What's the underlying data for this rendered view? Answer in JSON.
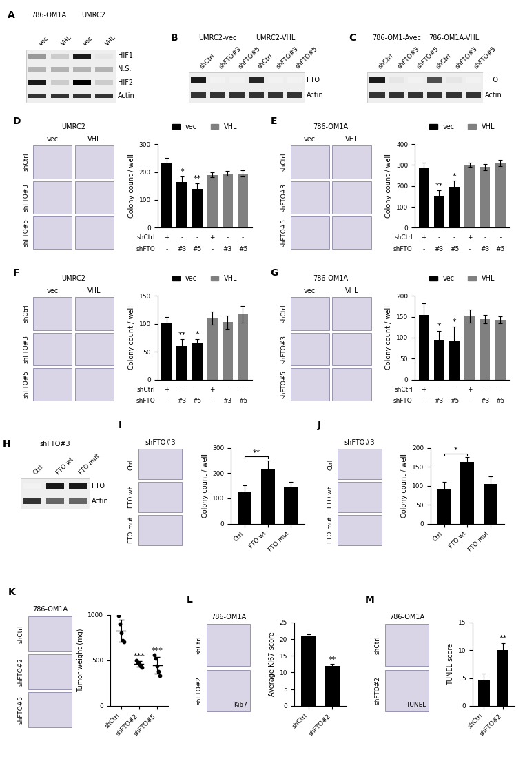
{
  "blots": [
    {
      "panel": "A",
      "groups": [
        "786-OM1A",
        "UMRC2"
      ],
      "lanes": [
        "vec",
        "VHL",
        "vec",
        "VHL"
      ],
      "bands": [
        {
          "label": "HIF1",
          "intensity": [
            0.4,
            0.2,
            0.9,
            0.1
          ]
        },
        {
          "label": "N.S.",
          "intensity": [
            0.3,
            0.3,
            0.3,
            0.3
          ]
        },
        {
          "label": "HIF2",
          "intensity": [
            0.9,
            0.2,
            1.0,
            0.2
          ]
        },
        {
          "label": "Actin",
          "intensity": [
            0.8,
            0.8,
            0.8,
            0.8
          ]
        }
      ]
    },
    {
      "panel": "B",
      "groups": [
        "UMRC2-vec",
        "UMRC2-VHL"
      ],
      "lanes": [
        "shCtrl",
        "shFTO#3",
        "shFTO#5",
        "shCtrl",
        "shFTO#3",
        "shFTO#5"
      ],
      "bands": [
        {
          "label": "FTO",
          "intensity": [
            0.9,
            0.05,
            0.05,
            0.85,
            0.05,
            0.05
          ]
        },
        {
          "label": "Actin",
          "intensity": [
            0.8,
            0.8,
            0.8,
            0.8,
            0.8,
            0.8
          ]
        }
      ]
    },
    {
      "panel": "C",
      "groups": [
        "786-OM1-Avec",
        "786-OM1A-VHL"
      ],
      "lanes": [
        "shCtrl",
        "shFTO#3",
        "shFTO#5",
        "shCtrl",
        "shFTO#3",
        "shFTO#5"
      ],
      "bands": [
        {
          "label": "FTO",
          "intensity": [
            0.9,
            0.1,
            0.05,
            0.7,
            0.1,
            0.05
          ]
        },
        {
          "label": "Actin",
          "intensity": [
            0.8,
            0.8,
            0.8,
            0.8,
            0.8,
            0.8
          ]
        }
      ]
    },
    {
      "panel": "H",
      "groups": [
        "shFTO#3"
      ],
      "lanes": [
        "Ctrl",
        "FTO wt",
        "FTO mut"
      ],
      "bands": [
        {
          "label": "FTO",
          "intensity": [
            0.05,
            0.9,
            0.9
          ]
        },
        {
          "label": "Actin",
          "intensity": [
            0.8,
            0.6,
            0.6
          ]
        }
      ]
    }
  ],
  "images": [
    {
      "title": "UMRC2",
      "columns": [
        "vec",
        "VHL"
      ],
      "rows": [
        "shCtrl",
        "shFTO#3",
        "shFTO#5"
      ]
    },
    {
      "title": "786-OM1A",
      "columns": [
        "vec",
        "VHL"
      ],
      "rows": [
        "shCtrl",
        "shFTO#3",
        "shFTO#5"
      ]
    },
    {
      "title": "UMRC2",
      "columns": [
        "vec",
        "VHL"
      ],
      "rows": [
        "shCtrl",
        "shFTO#3",
        "shFTO#5"
      ]
    },
    {
      "title": "786-OM1A",
      "columns": [
        "vec",
        "VHL"
      ],
      "rows": [
        "shCtrl",
        "shFTO#3",
        "shFTO#5"
      ]
    },
    {
      "title": "shFTO#3",
      "rows": [
        "Ctrl",
        "FTO wt",
        "FTO mut"
      ]
    },
    {
      "title": "shFTO#3",
      "rows": [
        "Ctrl",
        "FTO wt",
        "FTO mut"
      ]
    },
    {
      "title": "786-OM1A",
      "rows": [
        "shCtrl",
        "shFTO#2",
        "shFTO#5"
      ]
    },
    {
      "title": "786-OM1A",
      "rows": [
        "shCtrl",
        "shFTO#2"
      ],
      "stain": "Ki67"
    },
    {
      "title": "786-OM1A",
      "rows": [
        "shCtrl",
        "shFTO#2"
      ],
      "stain": "TUNEL"
    }
  ],
  "chart_data": [
    {
      "panel": "D",
      "type": "bar",
      "y_label": "Colony count / well",
      "x_table": [
        {
          "name": "shCtrl",
          "labels": [
            "+",
            "-",
            "-",
            "+",
            "-",
            "-"
          ]
        },
        {
          "name": "shFTO",
          "labels": [
            "-",
            "#3",
            "#5",
            "-",
            "#3",
            "#5"
          ]
        }
      ],
      "series": [
        {
          "name": "vec",
          "color": "#000000",
          "values": [
            230,
            165,
            140,
            null,
            null,
            null
          ],
          "errors": [
            20,
            20,
            20,
            null,
            null,
            null
          ]
        },
        {
          "name": "VHL",
          "color": "#808080",
          "values": [
            null,
            null,
            null,
            190,
            195,
            195
          ],
          "errors": [
            null,
            null,
            null,
            8,
            8,
            12
          ]
        }
      ],
      "significance": [
        null,
        "*",
        "**",
        null,
        null,
        null
      ],
      "ylim": [
        0,
        300
      ],
      "yticks": [
        0,
        100,
        200,
        300
      ],
      "legend": "upper center",
      "tick_labels": "y"
    },
    {
      "panel": "E",
      "type": "bar",
      "y_label": "Colony count / well",
      "x_table": [
        {
          "name": "shCtrl",
          "labels": [
            "+",
            "-",
            "-",
            "+",
            "-",
            "-"
          ]
        },
        {
          "name": "shFTO",
          "labels": [
            "-",
            "#3",
            "#5",
            "-",
            "#3",
            "#5"
          ]
        }
      ],
      "series": [
        {
          "name": "vec",
          "color": "#000000",
          "values": [
            285,
            150,
            195,
            null,
            null,
            null
          ],
          "errors": [
            25,
            30,
            30,
            null,
            null,
            null
          ]
        },
        {
          "name": "VHL",
          "color": "#808080",
          "values": [
            null,
            null,
            null,
            300,
            290,
            310
          ],
          "errors": [
            null,
            null,
            null,
            10,
            15,
            15
          ]
        }
      ],
      "significance": [
        null,
        "**",
        "*",
        null,
        null,
        null
      ],
      "ylim": [
        0,
        400
      ],
      "yticks": [
        0,
        100,
        200,
        300,
        400
      ],
      "legend": "upper center",
      "tick_labels": "y"
    },
    {
      "panel": "F",
      "type": "bar",
      "y_label": "Colony count / well",
      "x_table": [
        {
          "name": "shCtrl",
          "labels": [
            "+",
            "-",
            "-",
            "+",
            "-",
            "-"
          ]
        },
        {
          "name": "shFTO",
          "labels": [
            "-",
            "#3",
            "#5",
            "-",
            "#3",
            "#5"
          ]
        }
      ],
      "series": [
        {
          "name": "vec",
          "color": "#000000",
          "values": [
            102,
            60,
            65,
            null,
            null,
            null
          ],
          "errors": [
            10,
            12,
            8,
            null,
            null,
            null
          ]
        },
        {
          "name": "VHL",
          "color": "#808080",
          "values": [
            null,
            null,
            null,
            110,
            103,
            117
          ],
          "errors": [
            null,
            null,
            null,
            12,
            12,
            15
          ]
        }
      ],
      "significance": [
        null,
        "**",
        "*",
        null,
        null,
        null
      ],
      "ylim": [
        0,
        150
      ],
      "yticks": [
        0,
        50,
        100,
        150
      ],
      "legend": "upper center",
      "tick_labels": "y"
    },
    {
      "panel": "G",
      "type": "bar",
      "y_label": "Colony count / well",
      "x_table": [
        {
          "name": "shCtrl",
          "labels": [
            "+",
            "-",
            "-",
            "+",
            "-",
            "-"
          ]
        },
        {
          "name": "shFTO",
          "labels": [
            "-",
            "#3",
            "#5",
            "-",
            "#3",
            "#5"
          ]
        }
      ],
      "series": [
        {
          "name": "vec",
          "color": "#000000",
          "values": [
            155,
            95,
            92,
            null,
            null,
            null
          ],
          "errors": [
            28,
            22,
            35,
            null,
            null,
            null
          ]
        },
        {
          "name": "VHL",
          "color": "#808080",
          "values": [
            null,
            null,
            null,
            152,
            145,
            143
          ],
          "errors": [
            null,
            null,
            null,
            15,
            10,
            8
          ]
        }
      ],
      "significance": [
        null,
        "*",
        "*",
        null,
        null,
        null
      ],
      "ylim": [
        0,
        200
      ],
      "yticks": [
        0,
        50,
        100,
        150,
        200
      ],
      "legend": "upper center",
      "tick_labels": "y"
    },
    {
      "panel": "I",
      "type": "bar",
      "y_label": "Colony count / well",
      "categories": [
        "Ctrl",
        "FTO wt",
        "FTO mut"
      ],
      "values": [
        125,
        218,
        143
      ],
      "errors": [
        28,
        32,
        22
      ],
      "color": "#000000",
      "brackets": [
        {
          "from": 0,
          "to": 1,
          "text": "**"
        }
      ],
      "ylim": [
        0,
        300
      ],
      "yticks": [
        0,
        100,
        200,
        300
      ]
    },
    {
      "panel": "J",
      "type": "bar",
      "y_label": "Colony count / well",
      "categories": [
        "Ctrl",
        "FTO wt",
        "FTO mut"
      ],
      "values": [
        90,
        163,
        105
      ],
      "errors": [
        20,
        12,
        20
      ],
      "color": "#000000",
      "brackets": [
        {
          "from": 0,
          "to": 1,
          "text": "*"
        }
      ],
      "ylim": [
        0,
        200
      ],
      "yticks": [
        0,
        50,
        100,
        150,
        200
      ]
    },
    {
      "panel": "K",
      "type": "scatter",
      "y_label": "Tumor weight (mg)",
      "categories": [
        "shCtrl",
        "shFTO#2",
        "shFTO#5"
      ],
      "points": [
        [
          990,
          900,
          800,
          720,
          700
        ],
        [
          500,
          480,
          460,
          440,
          420
        ],
        [
          560,
          520,
          440,
          380,
          330
        ]
      ],
      "mean": [
        822,
        460,
        446
      ],
      "sd": [
        120,
        30,
        90
      ],
      "color": "#000000",
      "significance": [
        null,
        "***",
        "***"
      ],
      "ylim": [
        0,
        1000
      ],
      "yticks": [
        0,
        500,
        1000
      ]
    },
    {
      "panel": "L",
      "type": "bar",
      "y_label": "Average Ki67 score",
      "categories": [
        "shCtrl",
        "shFTO#2"
      ],
      "values": [
        21,
        12
      ],
      "errors": [
        0.5,
        0.5
      ],
      "color": "#000000",
      "significance": [
        null,
        "**"
      ],
      "ylim": [
        0,
        25
      ],
      "yticks": [
        0,
        5,
        10,
        15,
        20,
        25
      ]
    },
    {
      "panel": "M",
      "type": "bar",
      "y_label": "TUNEL score",
      "categories": [
        "shCtrl",
        "shFTO#2"
      ],
      "values": [
        4.6,
        10
      ],
      "errors": [
        1.2,
        1.3
      ],
      "color": "#000000",
      "significance": [
        null,
        "**"
      ],
      "ylim": [
        0,
        15
      ],
      "yticks": [
        0,
        5,
        10,
        15
      ]
    }
  ]
}
